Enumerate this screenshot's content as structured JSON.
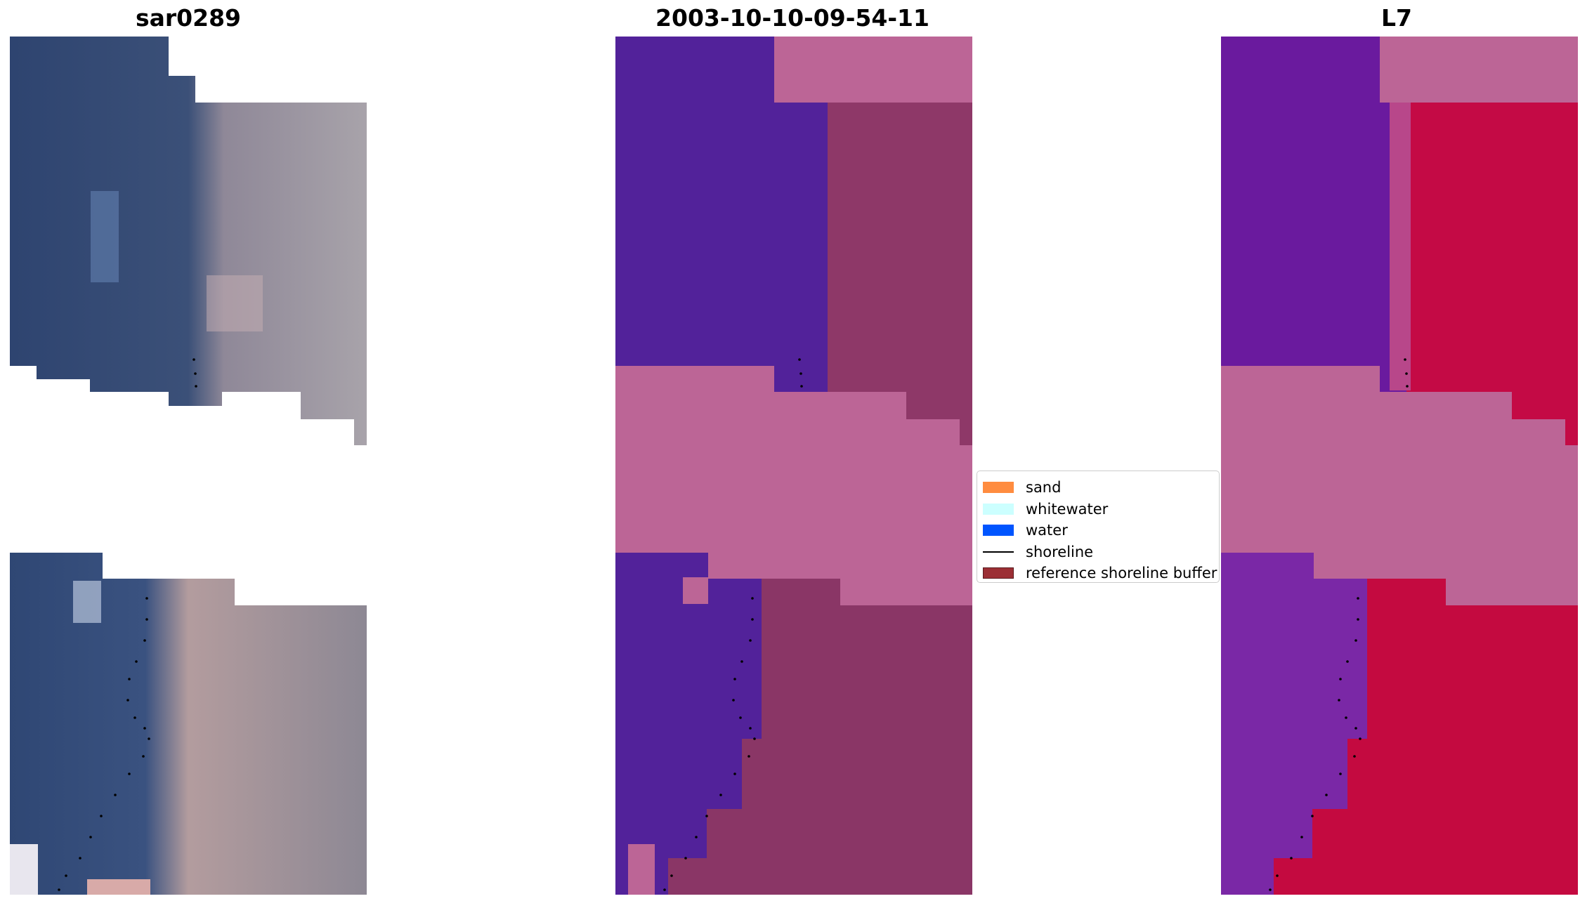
{
  "panels": [
    {
      "title": "sar0289",
      "image": "RGB satellite image crop"
    },
    {
      "title": "2003-10-10-09-54-11",
      "image": "classified image overlay"
    },
    {
      "title": "L7",
      "image": "index image overlay"
    }
  ],
  "legend": {
    "items": [
      {
        "label": "sand",
        "color": "#ff8c3f",
        "kind": "patch"
      },
      {
        "label": "whitewater",
        "color": "#ccffff",
        "kind": "patch"
      },
      {
        "label": "water",
        "color": "#0055ff",
        "kind": "patch"
      },
      {
        "label": "shoreline",
        "color": "#000000",
        "kind": "line"
      },
      {
        "label": "reference shoreline buffer",
        "color": "#9c2f35",
        "kind": "patch"
      }
    ]
  }
}
